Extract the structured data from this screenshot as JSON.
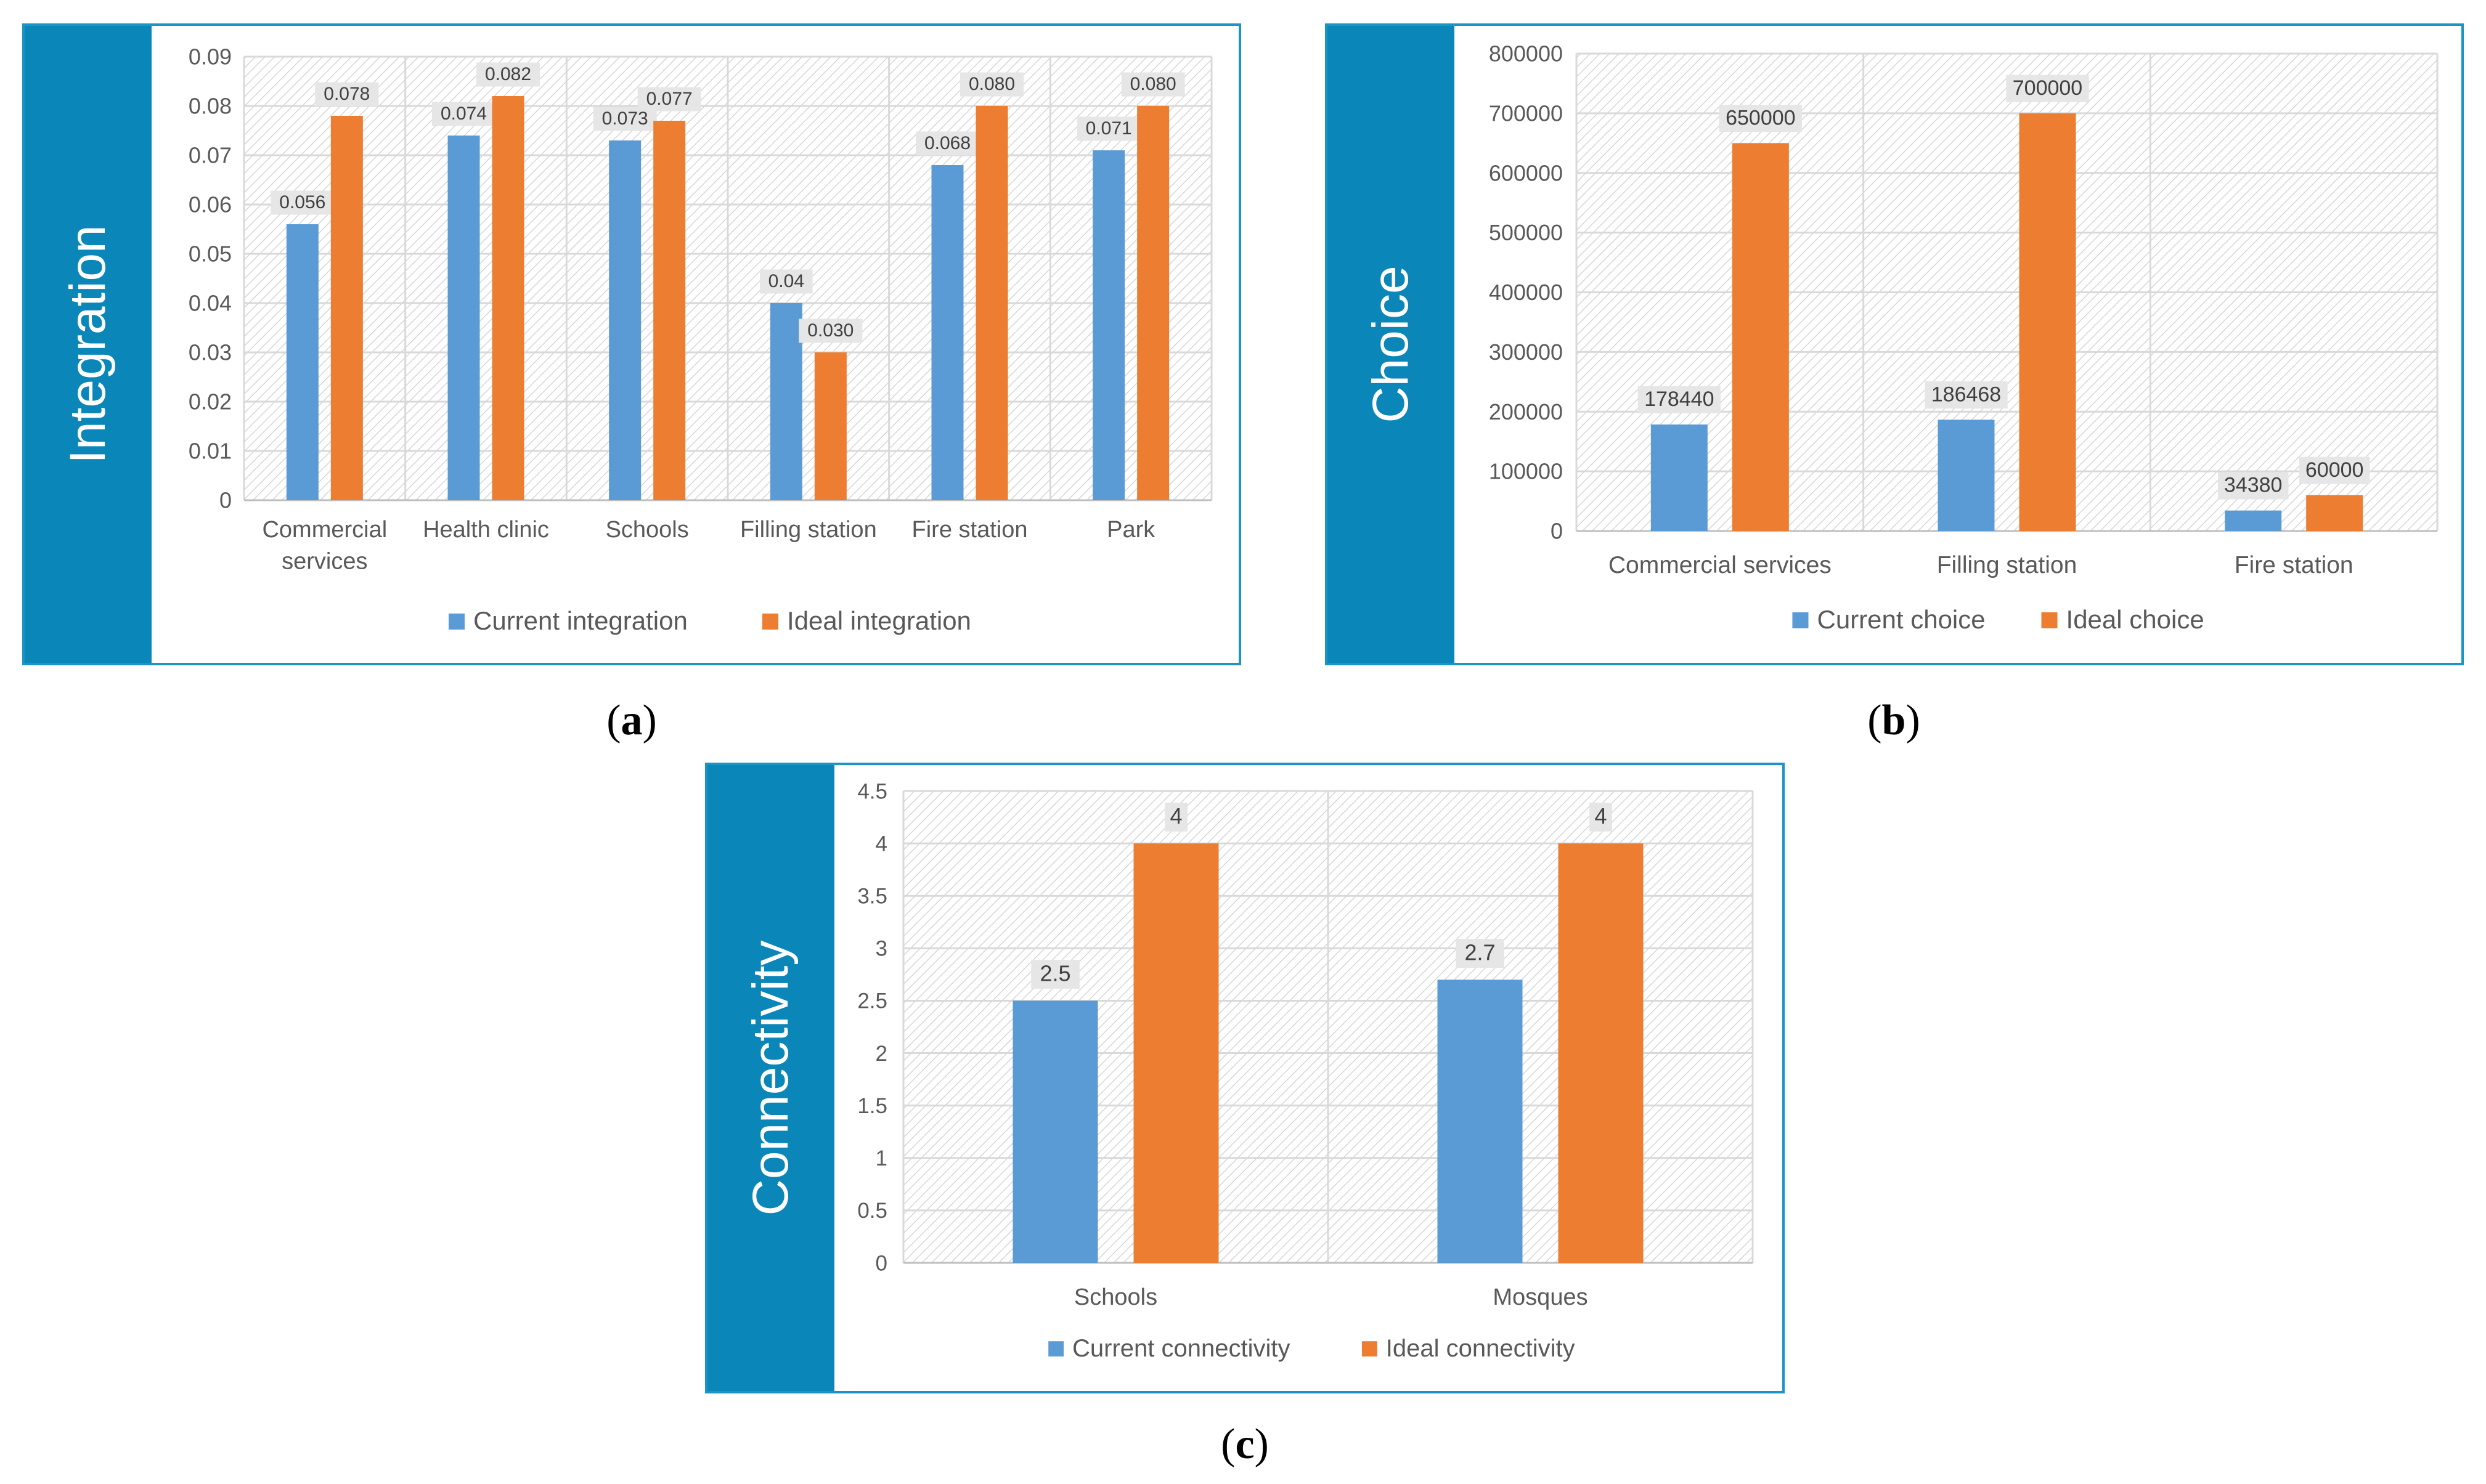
{
  "charts": [
    {
      "label": "Integration",
      "caption": "a"
    },
    {
      "label": "Choice",
      "caption": "b"
    },
    {
      "label": "Connectivity",
      "caption": "c"
    }
  ],
  "colors": {
    "current": "#5b9bd5",
    "ideal": "#ed7d31",
    "band": "#0b86b8",
    "border": "#1a95c6"
  },
  "chart_data": [
    {
      "type": "bar",
      "ylabel": "Integration",
      "categories": [
        "Commercial services",
        "Health clinic",
        "Schools",
        "Filling station",
        "Fire station",
        "Park"
      ],
      "category_lines": [
        [
          "Commercial",
          "services"
        ],
        [
          "Health clinic"
        ],
        [
          "Schools"
        ],
        [
          "Filling station"
        ],
        [
          "Fire station"
        ],
        [
          "Park"
        ]
      ],
      "yticks": [
        "0",
        "0.01",
        "0.02",
        "0.03",
        "0.04",
        "0.05",
        "0.06",
        "0.07",
        "0.08",
        "0.09"
      ],
      "ylim": [
        0,
        0.09
      ],
      "series": [
        {
          "name": "Current integration",
          "values": [
            0.056,
            0.074,
            0.073,
            0.04,
            0.068,
            0.071
          ],
          "labels": [
            "0.056",
            "0.074",
            "0.073",
            "0.04",
            "0.068",
            "0.071"
          ]
        },
        {
          "name": "Ideal integration",
          "values": [
            0.078,
            0.082,
            0.077,
            0.03,
            0.08,
            0.08
          ],
          "labels": [
            "0.078",
            "0.082",
            "0.077",
            "0.030",
            "0.080",
            "0.080"
          ]
        }
      ],
      "legend_position": "bottom"
    },
    {
      "type": "bar",
      "ylabel": "Choice",
      "categories": [
        "Commercial services",
        "Filling station",
        "Fire station"
      ],
      "category_lines": [
        [
          "Commercial services"
        ],
        [
          "Filling station"
        ],
        [
          "Fire station"
        ]
      ],
      "yticks": [
        "0",
        "100000",
        "200000",
        "300000",
        "400000",
        "500000",
        "600000",
        "700000",
        "800000"
      ],
      "ylim": [
        0,
        800000
      ],
      "series": [
        {
          "name": "Current choice",
          "values": [
            178440,
            186468,
            34380
          ],
          "labels": [
            "178440",
            "186468",
            "34380"
          ]
        },
        {
          "name": "Ideal choice",
          "values": [
            650000,
            700000,
            60000
          ],
          "labels": [
            "650000",
            "700000",
            "60000"
          ]
        }
      ],
      "legend_position": "bottom"
    },
    {
      "type": "bar",
      "ylabel": "Connectivity",
      "categories": [
        "Schools",
        "Mosques"
      ],
      "category_lines": [
        [
          "Schools"
        ],
        [
          "Mosques"
        ]
      ],
      "yticks": [
        "0",
        "0.5",
        "1",
        "1.5",
        "2",
        "2.5",
        "3",
        "3.5",
        "4",
        "4.5"
      ],
      "ylim": [
        0,
        4.5
      ],
      "series": [
        {
          "name": "Current connectivity",
          "values": [
            2.5,
            2.7
          ],
          "labels": [
            "2.5",
            "2.7"
          ]
        },
        {
          "name": "Ideal connectivity",
          "values": [
            4,
            4
          ],
          "labels": [
            "4",
            "4"
          ]
        }
      ],
      "legend_position": "bottom"
    }
  ]
}
